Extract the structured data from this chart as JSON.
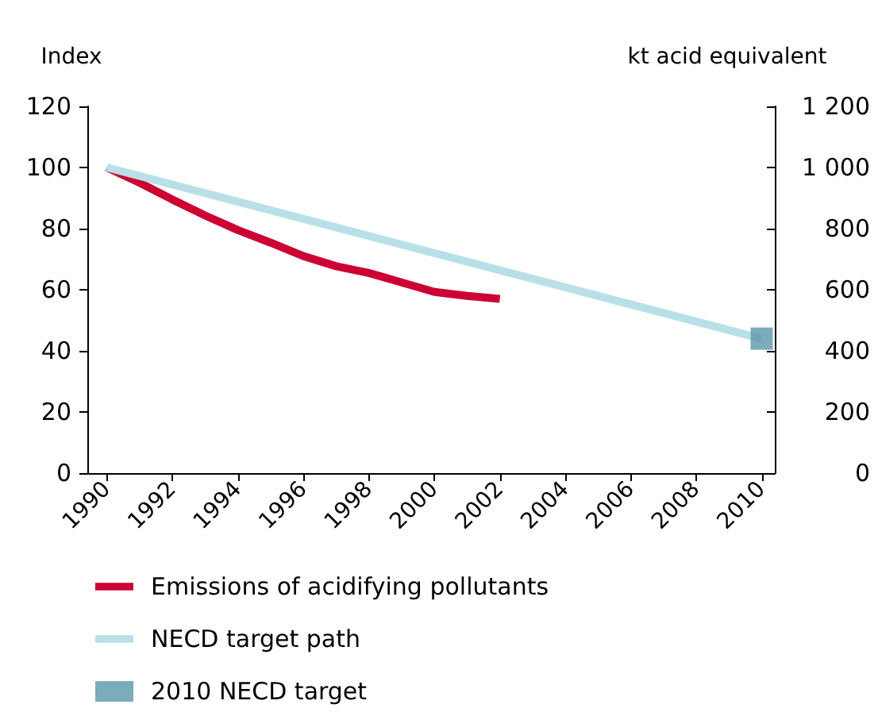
{
  "chart_data": {
    "type": "line",
    "ylabel": "Index",
    "y2label": "kt acid equivalent",
    "xlim": [
      1989.4,
      2010.4
    ],
    "xticks": [
      1990,
      1992,
      1994,
      1996,
      1998,
      2000,
      2002,
      2004,
      2006,
      2008,
      2010
    ],
    "ylim": [
      0,
      120
    ],
    "yticks": [
      0,
      20,
      40,
      60,
      80,
      100,
      120
    ],
    "y2lim": [
      0,
      1200
    ],
    "y2ticks": [
      0,
      200,
      400,
      600,
      800,
      {
        "value": 1000,
        "label": "1 000"
      },
      {
        "value": 1200,
        "label": "1 200"
      }
    ],
    "series": [
      {
        "name": "Emissions of acidifying pollutants",
        "color": "#cc0033",
        "x": [
          1990,
          1991,
          1992,
          1993,
          1994,
          1995,
          1996,
          1997,
          1998,
          1999,
          2000,
          2001,
          2002
        ],
        "values": [
          100,
          95,
          89.5,
          84.3,
          79.5,
          75.4,
          71,
          67.7,
          65.5,
          62.4,
          59.3,
          58,
          57
        ]
      },
      {
        "name": "NECD target path",
        "color": "#b9e0e8",
        "x": [
          1990,
          2010
        ],
        "values": [
          100,
          44
        ]
      },
      {
        "name": "2010 NECD target",
        "type": "scatter",
        "axis": "y2",
        "marker": "square",
        "color": "#5b97ab",
        "x": [
          2010
        ],
        "values": [
          440
        ]
      }
    ],
    "marker": "none",
    "line_style": "solid",
    "grid": false,
    "legend": "bottom"
  }
}
